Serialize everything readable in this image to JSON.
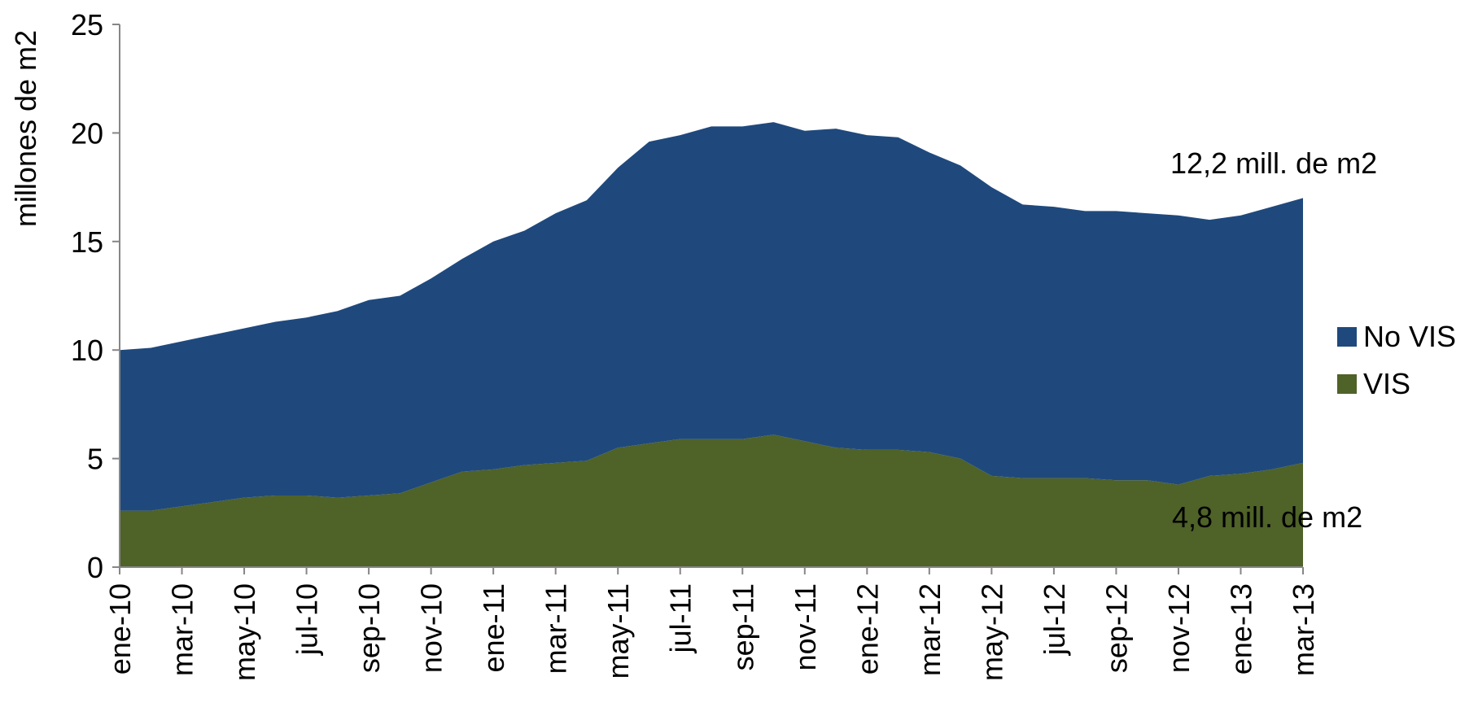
{
  "chart_data": {
    "type": "area",
    "stacked": true,
    "ylabel": "millones de m2",
    "ylim": [
      0,
      25
    ],
    "yticks": [
      0,
      5,
      10,
      15,
      20,
      25
    ],
    "x": [
      "ene-10",
      "feb-10",
      "mar-10",
      "abr-10",
      "may-10",
      "jun-10",
      "jul-10",
      "ago-10",
      "sep-10",
      "oct-10",
      "nov-10",
      "dic-10",
      "ene-11",
      "feb-11",
      "mar-11",
      "abr-11",
      "may-11",
      "jun-11",
      "jul-11",
      "ago-11",
      "sep-11",
      "oct-11",
      "nov-11",
      "dic-11",
      "ene-12",
      "feb-12",
      "mar-12",
      "abr-12",
      "may-12",
      "jun-12",
      "jul-12",
      "ago-12",
      "sep-12",
      "oct-12",
      "nov-12",
      "dic-12",
      "ene-13",
      "feb-13",
      "mar-13"
    ],
    "tick_labels": [
      "ene-10",
      "mar-10",
      "may-10",
      "jul-10",
      "sep-10",
      "nov-10",
      "ene-11",
      "mar-11",
      "may-11",
      "jul-11",
      "sep-11",
      "nov-11",
      "ene-12",
      "mar-12",
      "may-12",
      "jul-12",
      "sep-12",
      "nov-12",
      "ene-13",
      "mar-13"
    ],
    "series": [
      {
        "name": "VIS",
        "color": "#4f6228",
        "values": [
          2.6,
          2.6,
          2.8,
          3.0,
          3.2,
          3.3,
          3.3,
          3.2,
          3.3,
          3.4,
          3.9,
          4.4,
          4.5,
          4.7,
          4.8,
          4.9,
          5.5,
          5.7,
          5.9,
          5.9,
          5.9,
          6.1,
          5.8,
          5.5,
          5.4,
          5.4,
          5.3,
          5.0,
          4.2,
          4.1,
          4.1,
          4.1,
          4.0,
          4.0,
          3.8,
          4.2,
          4.3,
          4.5,
          4.8
        ]
      },
      {
        "name": "No VIS",
        "color": "#1f497d",
        "values": [
          7.4,
          7.5,
          7.6,
          7.7,
          7.8,
          8.0,
          8.2,
          8.6,
          9.0,
          9.1,
          9.4,
          9.8,
          10.5,
          10.8,
          11.5,
          12.0,
          12.9,
          13.9,
          14.0,
          14.4,
          14.4,
          14.4,
          14.3,
          14.7,
          14.5,
          14.4,
          13.8,
          13.5,
          13.3,
          12.6,
          12.5,
          12.3,
          12.4,
          12.3,
          12.4,
          11.8,
          11.9,
          12.1,
          12.2
        ]
      }
    ],
    "legend_position": "right",
    "grid": false,
    "annotations": {
      "novis": "12,2 mill. de m2",
      "vis": "4,8 mill. de m2"
    }
  }
}
